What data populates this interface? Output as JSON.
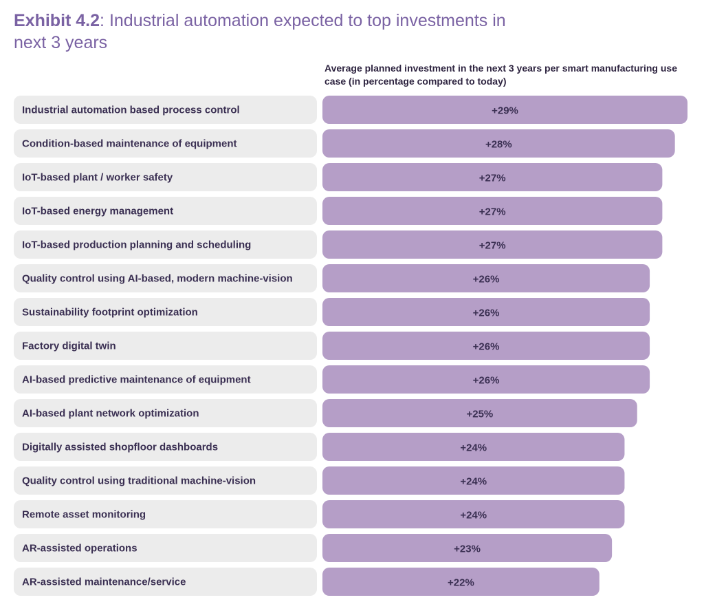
{
  "title_prefix": "Exhibit 4.2",
  "title_rest": ": Industrial automation expected to top investments in next 3 years",
  "subtitle": "Average planned investment in the next 3 years per smart manufacturing use case (in percentage compared to today)",
  "colors": {
    "bar": "#b59ec7",
    "label_bg": "#ececec",
    "title": "#7a62a3",
    "text": "#3a2f52"
  },
  "chart_data": {
    "type": "bar",
    "orientation": "horizontal",
    "categories": [
      "Industrial automation based process control",
      "Condition-based maintenance of equipment",
      "IoT-based plant / worker safety",
      "IoT-based energy management",
      "IoT-based production planning and scheduling",
      "Quality control using AI-based, modern machine-vision",
      "Sustainability footprint optimization",
      "Factory digital twin",
      "AI-based predictive maintenance of equipment",
      "AI-based plant network optimization",
      "Digitally assisted shopfloor dashboards",
      "Quality control using traditional machine-vision",
      "Remote asset monitoring",
      "AR-assisted operations",
      "AR-assisted maintenance/service"
    ],
    "values": [
      29,
      28,
      27,
      27,
      27,
      26,
      26,
      26,
      26,
      25,
      24,
      24,
      24,
      23,
      22
    ],
    "value_labels": [
      "+29%",
      "+28%",
      "+27%",
      "+27%",
      "+27%",
      "+26%",
      "+26%",
      "+26%",
      "+26%",
      "+25%",
      "+24%",
      "+24%",
      "+24%",
      "+23%",
      "+22%"
    ],
    "title": "Exhibit 4.2: Industrial automation expected to top investments in next 3 years",
    "xlabel": "Average planned investment in the next 3 years per smart manufacturing use case (in percentage compared to today)",
    "ylabel": "",
    "xlim": [
      0,
      29
    ],
    "grid": false,
    "legend": "none"
  }
}
